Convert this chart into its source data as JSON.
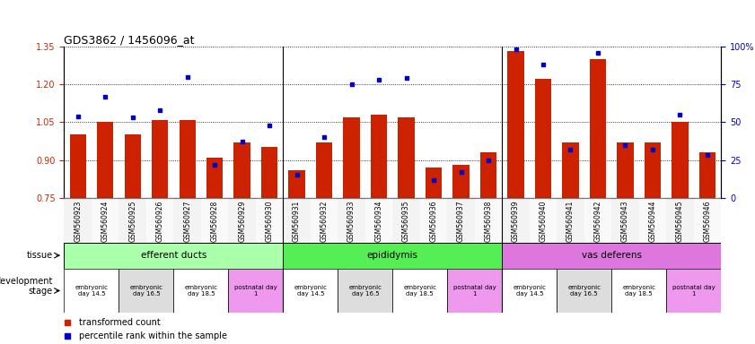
{
  "title": "GDS3862 / 1456096_at",
  "samples": [
    "GSM560923",
    "GSM560924",
    "GSM560925",
    "GSM560926",
    "GSM560927",
    "GSM560928",
    "GSM560929",
    "GSM560930",
    "GSM560931",
    "GSM560932",
    "GSM560933",
    "GSM560934",
    "GSM560935",
    "GSM560936",
    "GSM560937",
    "GSM560938",
    "GSM560939",
    "GSM560940",
    "GSM560941",
    "GSM560942",
    "GSM560943",
    "GSM560944",
    "GSM560945",
    "GSM560946"
  ],
  "transformed_count": [
    1.0,
    1.05,
    1.0,
    1.06,
    1.06,
    0.91,
    0.97,
    0.95,
    0.86,
    0.97,
    1.07,
    1.08,
    1.07,
    0.87,
    0.88,
    0.93,
    1.33,
    1.22,
    0.97,
    1.3,
    0.97,
    0.97,
    1.05,
    0.93
  ],
  "percentile_rank": [
    54,
    67,
    53,
    58,
    80,
    22,
    37,
    48,
    15,
    40,
    75,
    78,
    79,
    12,
    17,
    25,
    98,
    88,
    32,
    96,
    35,
    32,
    55,
    28
  ],
  "ylim_left": [
    0.75,
    1.35
  ],
  "ylim_right": [
    0,
    100
  ],
  "yticks_left": [
    0.75,
    0.9,
    1.05,
    1.2,
    1.35
  ],
  "yticks_right": [
    0,
    25,
    50,
    75,
    100
  ],
  "bar_color": "#cc2200",
  "dot_color": "#0000cc",
  "tissue_groups": [
    {
      "label": "efferent ducts",
      "start": 0,
      "end": 7,
      "color": "#aaffaa"
    },
    {
      "label": "epididymis",
      "start": 8,
      "end": 15,
      "color": "#55ee55"
    },
    {
      "label": "vas deferens",
      "start": 16,
      "end": 23,
      "color": "#dd77dd"
    }
  ],
  "dev_stage_groups": [
    {
      "label": "embryonic\nday 14.5",
      "start": 0,
      "end": 1,
      "color": "#ffffff"
    },
    {
      "label": "embryonic\nday 16.5",
      "start": 2,
      "end": 3,
      "color": "#dddddd"
    },
    {
      "label": "embryonic\nday 18.5",
      "start": 4,
      "end": 5,
      "color": "#ffffff"
    },
    {
      "label": "postnatal day\n1",
      "start": 6,
      "end": 7,
      "color": "#ee99ee"
    },
    {
      "label": "embryonic\nday 14.5",
      "start": 8,
      "end": 9,
      "color": "#ffffff"
    },
    {
      "label": "embryonic\nday 16.5",
      "start": 10,
      "end": 11,
      "color": "#dddddd"
    },
    {
      "label": "embryonic\nday 18.5",
      "start": 12,
      "end": 13,
      "color": "#ffffff"
    },
    {
      "label": "postnatal day\n1",
      "start": 14,
      "end": 15,
      "color": "#ee99ee"
    },
    {
      "label": "embryonic\nday 14.5",
      "start": 16,
      "end": 17,
      "color": "#ffffff"
    },
    {
      "label": "embryonic\nday 16.5",
      "start": 18,
      "end": 19,
      "color": "#dddddd"
    },
    {
      "label": "embryonic\nday 18.5",
      "start": 20,
      "end": 21,
      "color": "#ffffff"
    },
    {
      "label": "postnatal day\n1",
      "start": 22,
      "end": 23,
      "color": "#ee99ee"
    }
  ],
  "legend_red_label": "transformed count",
  "legend_blue_label": "percentile rank within the sample"
}
